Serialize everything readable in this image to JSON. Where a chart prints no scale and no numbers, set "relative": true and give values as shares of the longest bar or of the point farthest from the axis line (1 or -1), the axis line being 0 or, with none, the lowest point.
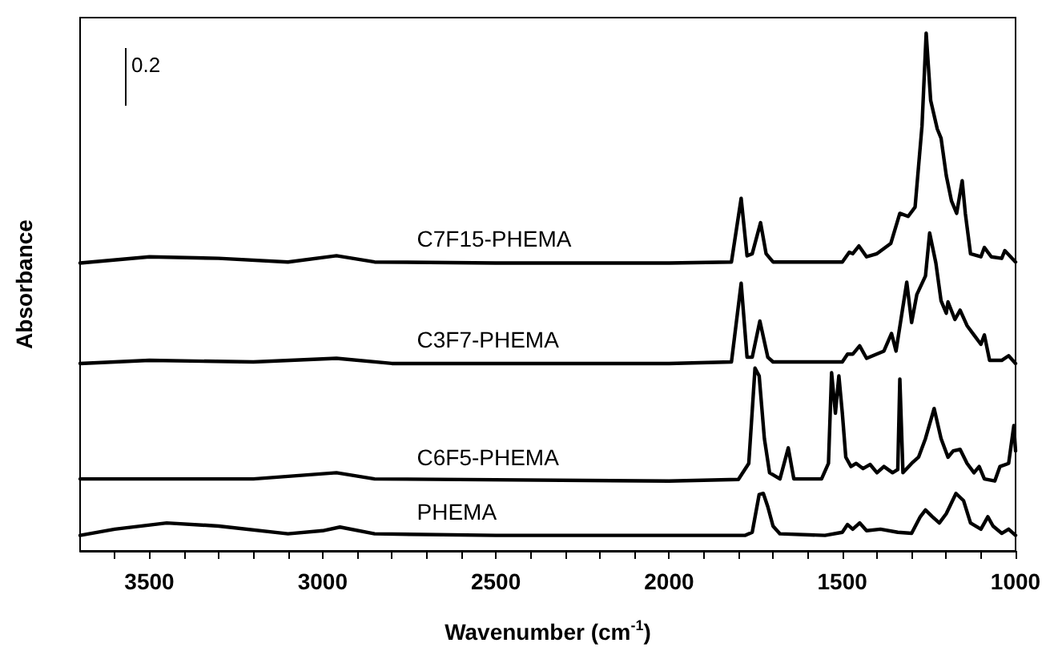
{
  "chart_data": {
    "type": "line",
    "relative": true,
    "xlabel": "Wavenumber (cm$^{-1}$)",
    "ylabel": "Absorbance",
    "annotations": [
      "0.2"
    ],
    "xlim": [
      3700,
      1000
    ],
    "xticks": [
      {
        "value": 3600,
        "label": null
      },
      3500,
      {
        "value": 3400,
        "label": null
      },
      {
        "value": 3300,
        "label": null
      },
      {
        "value": 3200,
        "label": null
      },
      {
        "value": 3100,
        "label": null
      },
      3000,
      {
        "value": 2900,
        "label": null
      },
      {
        "value": 2800,
        "label": null
      },
      {
        "value": 2700,
        "label": null
      },
      {
        "value": 2600,
        "label": null
      },
      2500,
      {
        "value": 2400,
        "label": null
      },
      {
        "value": 2300,
        "label": null
      },
      {
        "value": 2200,
        "label": null
      },
      {
        "value": 2100,
        "label": null
      },
      2000,
      {
        "value": 1900,
        "label": null
      },
      {
        "value": 1800,
        "label": null
      },
      {
        "value": 1700,
        "label": null
      },
      {
        "value": 1600,
        "label": null
      },
      1500,
      {
        "value": 1400,
        "label": null
      },
      {
        "value": 1300,
        "label": null
      },
      {
        "value": 1200,
        "label": null
      },
      {
        "value": 1100,
        "label": null
      },
      1000
    ],
    "tick_labels": "x",
    "grid": false,
    "legend": false,
    "marker": "none",
    "line_style": "solid",
    "series": [
      {
        "name": "C7F15-PHEMA",
        "color": "#000000",
        "x": [
          3700,
          3500,
          3300,
          3100,
          2960,
          2850,
          2500,
          2000,
          1820,
          1792,
          1775,
          1760,
          1736,
          1720,
          1700,
          1500,
          1480,
          1470,
          1452,
          1430,
          1400,
          1360,
          1334,
          1310,
          1290,
          1270,
          1258,
          1245,
          1226,
          1215,
          1200,
          1185,
          1170,
          1154,
          1145,
          1130,
          1100,
          1090,
          1070,
          1040,
          1031,
          1000
        ],
        "values": [
          0.556,
          0.568,
          0.565,
          0.558,
          0.57,
          0.558,
          0.556,
          0.556,
          0.558,
          0.681,
          0.57,
          0.574,
          0.634,
          0.574,
          0.558,
          0.558,
          0.577,
          0.574,
          0.589,
          0.568,
          0.574,
          0.594,
          0.652,
          0.646,
          0.664,
          0.821,
          1,
          0.87,
          0.815,
          0.797,
          0.725,
          0.676,
          0.652,
          0.715,
          0.652,
          0.574,
          0.568,
          0.586,
          0.568,
          0.565,
          0.58,
          0.558
        ]
      },
      {
        "name": "C3F7-PHEMA",
        "color": "#000000",
        "x": [
          3700,
          3500,
          3200,
          2960,
          2800,
          2000,
          1820,
          1792,
          1775,
          1760,
          1738,
          1715,
          1700,
          1500,
          1485,
          1470,
          1450,
          1430,
          1380,
          1358,
          1345,
          1314,
          1300,
          1285,
          1260,
          1248,
          1230,
          1215,
          1200,
          1195,
          1175,
          1160,
          1140,
          1120,
          1100,
          1090,
          1075,
          1040,
          1020,
          1000
        ],
        "values": [
          0.362,
          0.368,
          0.365,
          0.372,
          0.362,
          0.362,
          0.365,
          0.517,
          0.374,
          0.374,
          0.444,
          0.374,
          0.365,
          0.365,
          0.38,
          0.38,
          0.396,
          0.372,
          0.386,
          0.42,
          0.386,
          0.519,
          0.441,
          0.495,
          0.531,
          0.614,
          0.556,
          0.483,
          0.459,
          0.481,
          0.447,
          0.465,
          0.435,
          0.417,
          0.399,
          0.417,
          0.368,
          0.368,
          0.377,
          0.362
        ]
      },
      {
        "name": "C6F5-PHEMA",
        "color": "#000000",
        "x": [
          3700,
          3500,
          3200,
          2960,
          2850,
          2000,
          1800,
          1770,
          1752,
          1740,
          1725,
          1710,
          1680,
          1656,
          1640,
          1560,
          1540,
          1531,
          1520,
          1510,
          1500,
          1490,
          1475,
          1460,
          1440,
          1420,
          1400,
          1380,
          1355,
          1340,
          1334,
          1325,
          1300,
          1280,
          1260,
          1235,
          1215,
          1195,
          1180,
          1160,
          1140,
          1120,
          1105,
          1090,
          1060,
          1045,
          1020,
          1005,
          1000
        ],
        "values": [
          0.139,
          0.139,
          0.139,
          0.151,
          0.139,
          0.135,
          0.138,
          0.169,
          0.353,
          0.338,
          0.217,
          0.151,
          0.139,
          0.199,
          0.139,
          0.139,
          0.169,
          0.344,
          0.266,
          0.338,
          0.266,
          0.181,
          0.163,
          0.169,
          0.159,
          0.167,
          0.151,
          0.163,
          0.151,
          0.157,
          0.332,
          0.151,
          0.169,
          0.181,
          0.217,
          0.275,
          0.217,
          0.181,
          0.193,
          0.196,
          0.169,
          0.151,
          0.163,
          0.139,
          0.135,
          0.163,
          0.169,
          0.242,
          0.193
        ]
      },
      {
        "name": "PHEMA",
        "color": "#000000",
        "x": [
          3700,
          3600,
          3450,
          3300,
          3100,
          3000,
          2950,
          2850,
          2500,
          2000,
          1780,
          1760,
          1740,
          1728,
          1715,
          1700,
          1680,
          1550,
          1500,
          1485,
          1470,
          1450,
          1430,
          1390,
          1340,
          1300,
          1275,
          1260,
          1240,
          1220,
          1200,
          1172,
          1150,
          1130,
          1100,
          1080,
          1065,
          1040,
          1020,
          1000
        ],
        "values": [
          0.03,
          0.042,
          0.054,
          0.048,
          0.033,
          0.039,
          0.046,
          0.033,
          0.03,
          0.03,
          0.03,
          0.036,
          0.109,
          0.111,
          0.085,
          0.048,
          0.033,
          0.03,
          0.036,
          0.051,
          0.042,
          0.054,
          0.039,
          0.042,
          0.036,
          0.034,
          0.066,
          0.079,
          0.066,
          0.054,
          0.072,
          0.111,
          0.097,
          0.054,
          0.042,
          0.066,
          0.048,
          0.034,
          0.042,
          0.03
        ]
      }
    ]
  }
}
